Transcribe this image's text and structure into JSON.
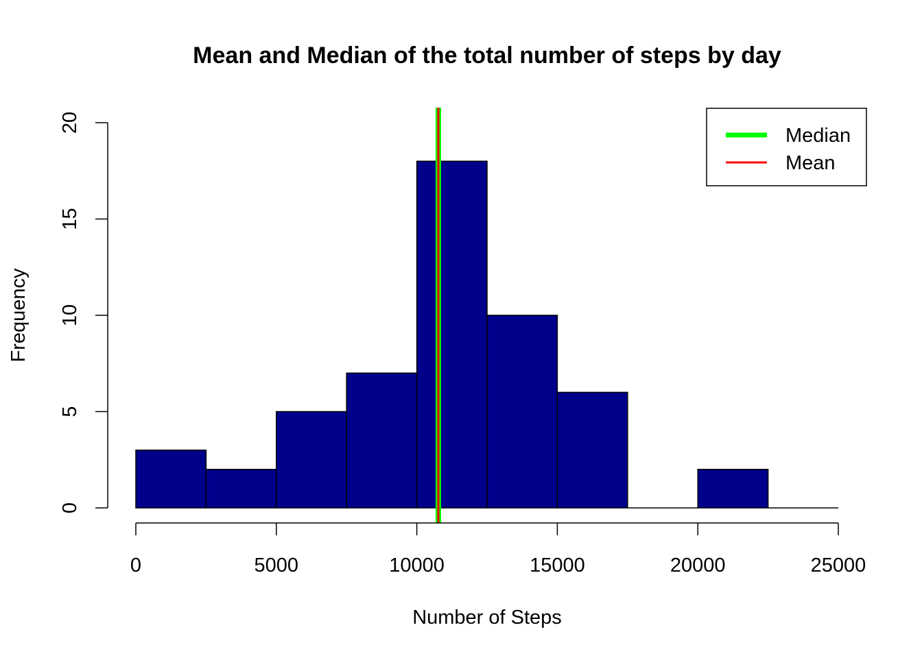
{
  "chart_data": {
    "type": "bar",
    "title": "Mean and Median of the total number of steps by day",
    "xlabel": "Number of Steps",
    "ylabel": "Frequency",
    "bins": [
      {
        "from": 0,
        "to": 2500,
        "count": 3
      },
      {
        "from": 2500,
        "to": 5000,
        "count": 2
      },
      {
        "from": 5000,
        "to": 7500,
        "count": 5
      },
      {
        "from": 7500,
        "to": 10000,
        "count": 7
      },
      {
        "from": 10000,
        "to": 12500,
        "count": 18
      },
      {
        "from": 12500,
        "to": 15000,
        "count": 10
      },
      {
        "from": 15000,
        "to": 17500,
        "count": 6
      },
      {
        "from": 17500,
        "to": 20000,
        "count": 0
      },
      {
        "from": 20000,
        "to": 22500,
        "count": 2
      },
      {
        "from": 22500,
        "to": 25000,
        "count": 0
      }
    ],
    "xlim": [
      0,
      25000
    ],
    "ylim": [
      0,
      20
    ],
    "xticks": [
      0,
      5000,
      10000,
      15000,
      20000,
      25000
    ],
    "yticks": [
      0,
      5,
      10,
      15,
      20
    ],
    "vlines": [
      {
        "name": "Median",
        "value": 10766,
        "color": "#00ff00"
      },
      {
        "name": "Mean",
        "value": 10766,
        "color": "#ff0000"
      }
    ],
    "bar_color": "#00008b",
    "legend_position": "top-right",
    "grid": false
  }
}
